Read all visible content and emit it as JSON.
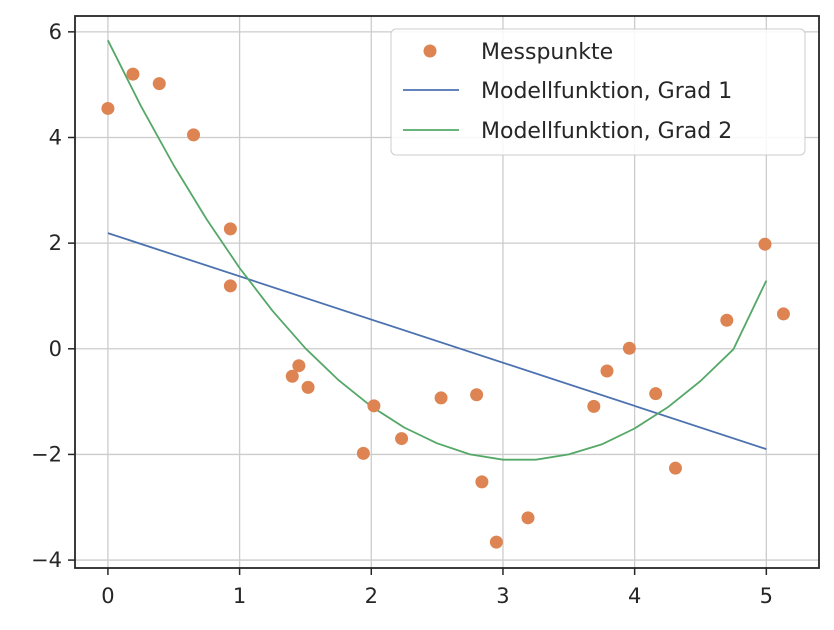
{
  "chart_data": {
    "type": "scatter",
    "title": "",
    "xlabel": "",
    "ylabel": "",
    "xlim": [
      -0.25,
      5.4
    ],
    "ylim": [
      -4.15,
      6.3
    ],
    "xticks": [
      0,
      1,
      2,
      3,
      4,
      5
    ],
    "yticks": [
      -4,
      -2,
      0,
      2,
      4,
      6
    ],
    "ytick_labels": [
      "−4",
      "−2",
      "0",
      "2",
      "4",
      "6"
    ],
    "grid": true,
    "legend_position": "top-right",
    "colors": {
      "points": "#dd8452",
      "line1": "#4c72b0",
      "line2": "#55a868",
      "grid": "#cccccc",
      "axis": "#262626"
    },
    "series": [
      {
        "name": "Messpunkte",
        "kind": "scatter",
        "x": [
          0.0,
          0.19,
          0.39,
          0.65,
          0.93,
          0.93,
          1.4,
          1.45,
          1.52,
          1.94,
          2.02,
          2.23,
          2.53,
          2.8,
          2.84,
          2.95,
          3.19,
          3.69,
          3.79,
          3.96,
          4.16,
          4.31,
          4.7,
          4.99,
          5.13
        ],
        "y": [
          4.55,
          5.2,
          5.02,
          4.05,
          2.27,
          1.19,
          -0.52,
          -0.32,
          -0.73,
          -1.98,
          -1.08,
          -1.7,
          -0.93,
          -0.87,
          -2.52,
          -3.66,
          -3.2,
          -1.09,
          -0.42,
          0.01,
          -0.85,
          -2.26,
          0.54,
          1.98,
          0.66
        ]
      },
      {
        "name": "Modellfunktion, Grad 1",
        "kind": "line",
        "x": [
          0,
          5
        ],
        "y": [
          2.19,
          -1.9
        ]
      },
      {
        "name": "Modellfunktion, Grad 2",
        "kind": "line",
        "x": [
          0,
          0.25,
          0.5,
          0.75,
          1,
          1.25,
          1.5,
          1.75,
          2,
          2.25,
          2.5,
          2.75,
          3,
          3.25,
          3.5,
          3.75,
          4,
          4.25,
          4.5,
          4.75,
          5
        ],
        "y": [
          5.84,
          4.6,
          3.47,
          2.45,
          1.53,
          0.72,
          0.01,
          -0.59,
          -1.09,
          -1.49,
          -1.79,
          -2.0,
          -2.1,
          -2.1,
          -2.0,
          -1.81,
          -1.51,
          -1.11,
          -0.61,
          -0.01,
          1.29
        ]
      }
    ]
  }
}
